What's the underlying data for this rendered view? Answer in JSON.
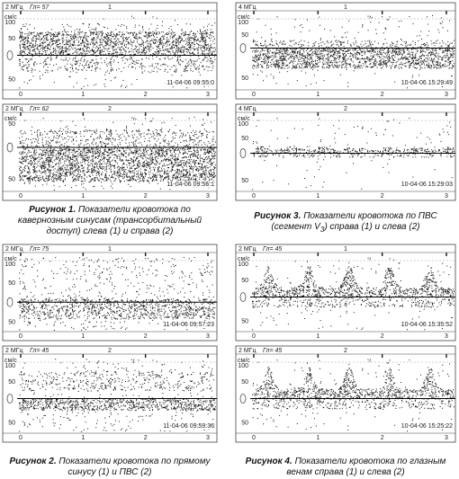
{
  "figures": [
    {
      "panels": [
        {
          "freq": "2 МГц",
          "depth": "Гл= 57",
          "num": "1",
          "unit": "см/с",
          "up": [
            "100",
            "50"
          ],
          "down": [
            "50"
          ],
          "xticks": [
            "0",
            "1",
            "2",
            "3"
          ],
          "timestamp": "11-04-06 09:55:0"
        },
        {
          "freq": "2 МГц",
          "depth": "Гл= 62",
          "num": "2",
          "unit": "см/с",
          "up": [
            "50"
          ],
          "down": [
            "50"
          ],
          "xticks": [
            "0",
            "1",
            "2",
            "3"
          ],
          "timestamp": "11-04-06 09:56:1"
        }
      ],
      "caption": {
        "label": "Рисунок 1.",
        "text": "Показатели кровотока по кавернозным синусам (трансорбитальный доступ) слева (1) и справа (2)"
      }
    },
    {
      "panels": [
        {
          "freq": "2 МГц",
          "depth": "Гл= 75",
          "num": "1",
          "unit": "см/с",
          "up": [
            "100",
            "50"
          ],
          "down": [
            "50"
          ],
          "xticks": [
            "0",
            "1",
            "2",
            "3"
          ],
          "timestamp": "11-04-06 09:57:23"
        },
        {
          "freq": "2 МГц",
          "depth": "Гл= 45",
          "num": "2",
          "unit": "см/с",
          "up": [
            "100",
            "50"
          ],
          "down": [
            "50"
          ],
          "xticks": [
            "0",
            "1",
            "2",
            "3"
          ],
          "timestamp": "11-04-06 09:59:36"
        }
      ],
      "caption": {
        "label": "Рисунок 2.",
        "text": "Показатели кровотока по прямому синусу (1) и ПВС (2)"
      }
    },
    {
      "panels": [
        {
          "freq": "4 МГц",
          "num": "1",
          "unit": "см/с",
          "up": [
            "100",
            "50"
          ],
          "down": [
            "50"
          ],
          "xticks": [
            "0",
            "1",
            "2",
            "3"
          ],
          "timestamp": "10-04-06 15:29:49"
        },
        {
          "freq": "4 МГц",
          "num": "2",
          "unit": "см/с",
          "up": [
            "100",
            "50"
          ],
          "down": [
            "50"
          ],
          "xticks": [
            "0",
            "1",
            "2",
            "3"
          ],
          "timestamp": "10-04-06 15:29:03"
        }
      ],
      "caption": {
        "label": "Рисунок 3.",
        "text": "Показатели кровотока по ПВС (сегмент V",
        "sub": "3",
        "tail": ") справа (1) и слева (2)"
      }
    },
    {
      "panels": [
        {
          "freq": "2 МГц",
          "depth": "Гл= 45",
          "num": "1",
          "unit": "см/с",
          "up": [
            "100",
            "50"
          ],
          "down": [
            "50"
          ],
          "xticks": [
            "0",
            "1",
            "2",
            "3"
          ],
          "timestamp": "10-04-06 15:35:52"
        },
        {
          "freq": "2 МГц",
          "depth": "Гл= 45",
          "num": "2",
          "unit": "см/с",
          "up": [
            "100",
            "50"
          ],
          "down": [
            "50"
          ],
          "xticks": [
            "0",
            "1",
            "2",
            "3"
          ],
          "timestamp": "10-04-06 15:25:22"
        }
      ],
      "caption": {
        "label": "Рисунок 4.",
        "text": "Показатели кровотока по глазным венам справа (1) и слева (2)"
      }
    }
  ]
}
